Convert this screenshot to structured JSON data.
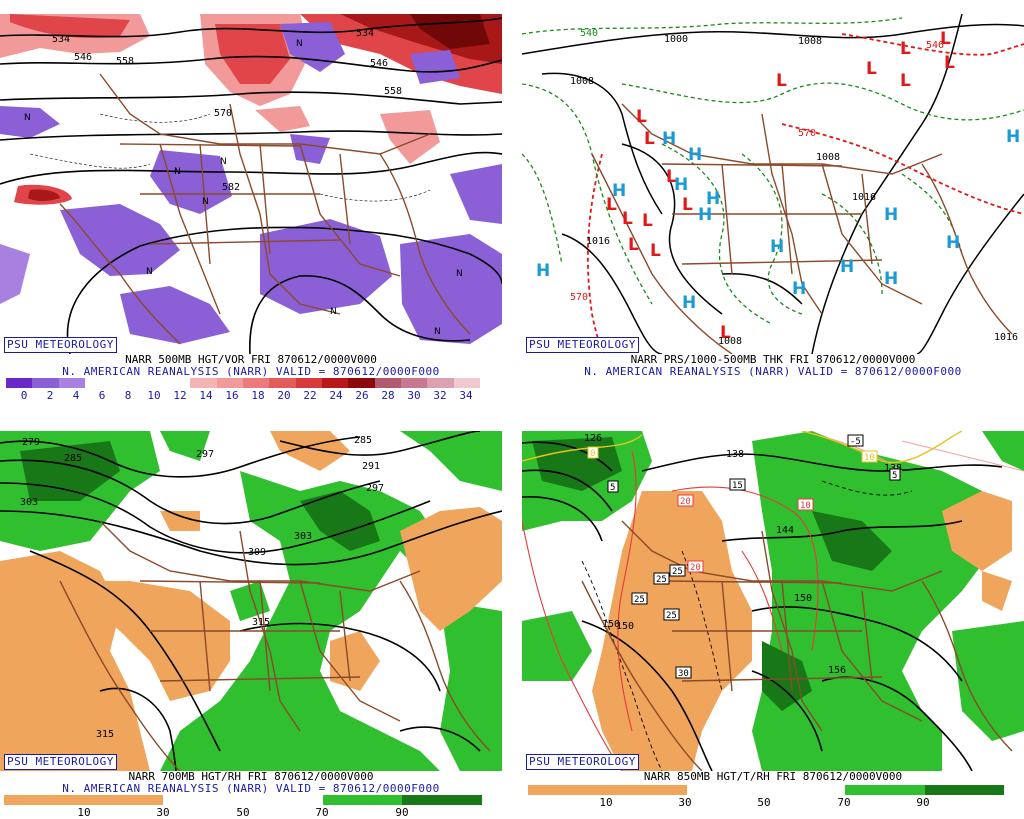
{
  "panels": [
    {
      "psu_label": "PSU METEOROLOGY",
      "caption_line1": "NARR 500MB HGT/VOR FRI 870612/0000V000",
      "caption_line2": "N. AMERICAN REANALYSIS (NARR) VALID = 870612/0000F000",
      "colorbar_ticks": [
        "0",
        "2",
        "4",
        "6",
        "8",
        "10",
        "12",
        "14",
        "16",
        "18",
        "20",
        "22",
        "24",
        "26",
        "28",
        "30",
        "32",
        "34"
      ],
      "contour_labels": [
        "534",
        "546",
        "558",
        "570",
        "582",
        "546",
        "558",
        "534"
      ]
    },
    {
      "psu_label": "PSU METEOROLOGY",
      "caption_line1": "NARR PRS/1000-500MB THK FRI 870612/0000V000",
      "caption_line2": "N. AMERICAN REANALYSIS (NARR) VALID = 870612/0000F000",
      "contour_labels": [
        "540",
        "1000",
        "1008",
        "1008",
        "1016",
        "1016",
        "1008",
        "570",
        "546",
        "1016",
        "1008",
        "570"
      ]
    },
    {
      "psu_label": "PSU METEOROLOGY",
      "caption_line1": "NARR 700MB HGT/RH FRI 870612/0000V000",
      "caption_line2": "N. AMERICAN REANALYSIS (NARR) VALID = 870612/0000F000",
      "colorbar_ticks": [
        "10",
        "30",
        "50",
        "70",
        "90"
      ],
      "contour_labels": [
        "279",
        "285",
        "303",
        "297",
        "285",
        "291",
        "297",
        "309",
        "303",
        "315",
        "315"
      ]
    },
    {
      "psu_label": "PSU METEOROLOGY",
      "caption_line1": "NARR 850MB HGT/T/RH FRI 870612/0000V000",
      "colorbar_ticks": [
        "10",
        "30",
        "50",
        "70",
        "90"
      ],
      "contour_labels": [
        "126",
        "138",
        "144",
        "150",
        "150",
        "150",
        "156",
        "138"
      ],
      "temp_labels": [
        "0",
        "5",
        "15",
        "10",
        "20",
        "20",
        "25",
        "25",
        "25",
        "25",
        "30",
        "-5",
        "10",
        "5",
        "15"
      ]
    }
  ],
  "colors": {
    "coast_border": "#8b4a2b",
    "vort_purple": "#8b5fd6",
    "vort_red_light": "#f29a9a",
    "vort_red": "#e0454a",
    "vort_red_dark": "#a81818",
    "rh_green": "#2fbf2f",
    "rh_green_dark": "#187818",
    "rh_orange": "#f0a55c",
    "high_blue": "#1a9ad6",
    "low_red": "#e01818",
    "thickness_red": "#e01818",
    "thickness_green": "#1a8a1a",
    "label_blue": "#1a1aa8"
  },
  "colorbar1": [
    "#6a28c8",
    "#8b5fd6",
    "#a880e0",
    "#ffffff",
    "#ffffff",
    "#ffffff",
    "#ffffff",
    "#f4b4b4",
    "#f29a9a",
    "#ee7b7b",
    "#e45b5b",
    "#d83a3a",
    "#b81818",
    "#8c0a0a",
    "#b05a70",
    "#c87890",
    "#dca0b0",
    "#f0c8d0"
  ],
  "colorbar_rh": [
    "#f0a55c",
    "#f0a55c",
    "#ffffff",
    "#ffffff",
    "#2fbf2f",
    "#187818"
  ]
}
